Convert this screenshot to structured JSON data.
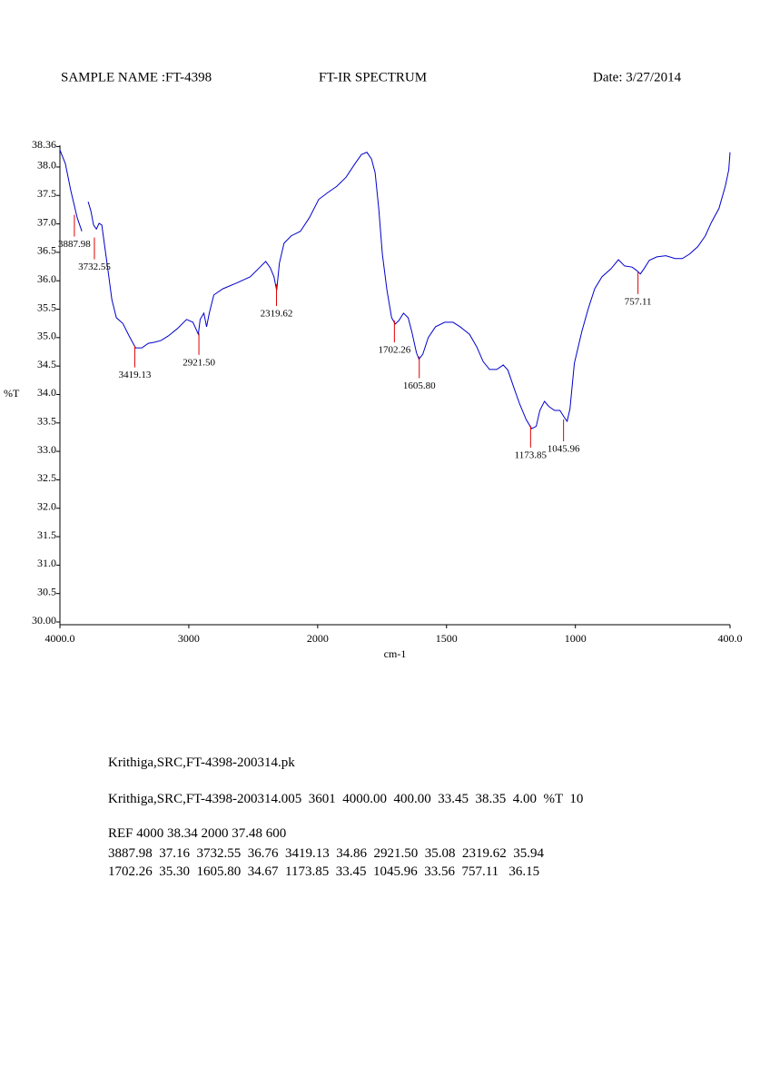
{
  "header": {
    "sample_name": "SAMPLE NAME :FT-4398",
    "date": "Date: 3/27/2014"
  },
  "chart_data": {
    "type": "line",
    "title": "FT-IR SPECTRUM",
    "x_label": "cm-1",
    "y_label": "%T",
    "xlim": [
      4000,
      400
    ],
    "xscale_break": 2000,
    "xticks": [
      {
        "value": 4000,
        "label": "4000.0"
      },
      3000,
      2000,
      1500,
      1000,
      {
        "value": 400,
        "label": "400.0"
      }
    ],
    "ylim": [
      30,
      38.36
    ],
    "yticks": [
      {
        "value": 30,
        "label": "30.00"
      },
      30.5,
      {
        "value": 31,
        "label": "31.0"
      },
      31.5,
      {
        "value": 32,
        "label": "32.0"
      },
      32.5,
      {
        "value": 33,
        "label": "33.0"
      },
      33.5,
      {
        "value": 34,
        "label": "34.0"
      },
      34.5,
      {
        "value": 35,
        "label": "35.0"
      },
      35.5,
      {
        "value": 36,
        "label": "36.0"
      },
      36.5,
      {
        "value": 37,
        "label": "37.0"
      },
      37.5,
      {
        "value": 38,
        "label": "38.0"
      },
      38.36
    ],
    "x": [
      4000,
      3958,
      3916,
      3866,
      3830,
      3800,
      3781,
      3760,
      3739,
      3717,
      3696,
      3675,
      3654,
      3625,
      3597,
      3562,
      3512,
      3463,
      3413,
      3364,
      3314,
      3265,
      3215,
      3159,
      3088,
      3017,
      2968,
      2926,
      2912,
      2883,
      2862,
      2841,
      2806,
      2735,
      2629,
      2523,
      2452,
      2403,
      2368,
      2339,
      2318,
      2297,
      2261,
      2205,
      2134,
      2064,
      1996,
      1961,
      1926,
      1890,
      1855,
      1830,
      1809,
      1791,
      1777,
      1763,
      1749,
      1731,
      1713,
      1699,
      1685,
      1667,
      1649,
      1635,
      1617,
      1607,
      1592,
      1571,
      1543,
      1507,
      1475,
      1447,
      1411,
      1383,
      1358,
      1333,
      1305,
      1280,
      1262,
      1241,
      1216,
      1191,
      1170,
      1152,
      1138,
      1120,
      1103,
      1081,
      1060,
      1042,
      1032,
      1021,
      1004,
      975,
      950,
      925,
      897,
      862,
      833,
      809,
      780,
      762,
      748,
      734,
      713,
      684,
      649,
      613,
      585,
      557,
      525,
      496,
      472,
      443,
      418,
      405,
      400
    ],
    "series": [
      {
        "color": "#0000cc",
        "values": [
          38.3,
          38.06,
          37.59,
          37.11,
          36.87,
          null,
          37.39,
          37.23,
          36.98,
          36.91,
          37.01,
          36.98,
          36.63,
          36.15,
          35.67,
          35.35,
          35.25,
          35.03,
          34.82,
          34.82,
          34.9,
          34.92,
          34.95,
          35.03,
          35.16,
          35.32,
          35.27,
          35.06,
          35.32,
          35.43,
          35.19,
          35.43,
          35.75,
          35.86,
          35.96,
          36.07,
          36.23,
          36.34,
          36.23,
          36.07,
          35.83,
          36.31,
          36.66,
          36.79,
          36.87,
          37.11,
          37.43,
          37.55,
          37.66,
          37.82,
          38.06,
          38.22,
          38.26,
          38.14,
          37.9,
          37.27,
          36.47,
          35.83,
          35.35,
          35.24,
          35.3,
          35.43,
          35.35,
          35.11,
          34.74,
          34.62,
          34.71,
          35.0,
          35.19,
          35.27,
          35.27,
          35.19,
          35.06,
          34.84,
          34.58,
          34.44,
          34.44,
          34.52,
          34.43,
          34.15,
          33.83,
          33.56,
          33.4,
          33.44,
          33.72,
          33.88,
          33.79,
          33.72,
          33.72,
          33.59,
          33.53,
          33.75,
          34.55,
          35.11,
          35.51,
          35.86,
          36.07,
          36.21,
          36.37,
          36.26,
          36.24,
          36.18,
          36.12,
          36.21,
          36.36,
          36.42,
          36.44,
          36.39,
          36.39,
          36.47,
          36.6,
          36.79,
          37.03,
          37.27,
          37.67,
          37.95,
          38.26
        ]
      }
    ],
    "peaks": {
      "color": "#e00000",
      "x": [
        3887.98,
        3732.55,
        3419.13,
        2921.5,
        2319.62,
        1702.26,
        1605.8,
        1173.85,
        1045.96,
        757.11
      ],
      "values": [
        37.16,
        36.76,
        34.86,
        35.08,
        35.94,
        35.3,
        34.67,
        33.45,
        33.56,
        36.15
      ],
      "labels": [
        "3887.98",
        "3732.55",
        "3419.13",
        "2921.50",
        "2319.62",
        "1702.26",
        "1605.80",
        "1173.85",
        "1045.96",
        "757.11"
      ]
    }
  },
  "report": {
    "lines": [
      "Krithiga,SRC,FT-4398-200314.pk",
      "Krithiga,SRC,FT-4398-200314.005  3601  4000.00  400.00  33.45  38.35  4.00  %T  10",
      "REF 4000 38.34 2000 37.48 600",
      "3887.98  37.16  3732.55  36.76  3419.13  34.86  2921.50  35.08  2319.62  35.94",
      "1702.26  35.30  1605.80  34.67  1173.85  33.45  1045.96  33.56  757.11   36.15"
    ]
  }
}
